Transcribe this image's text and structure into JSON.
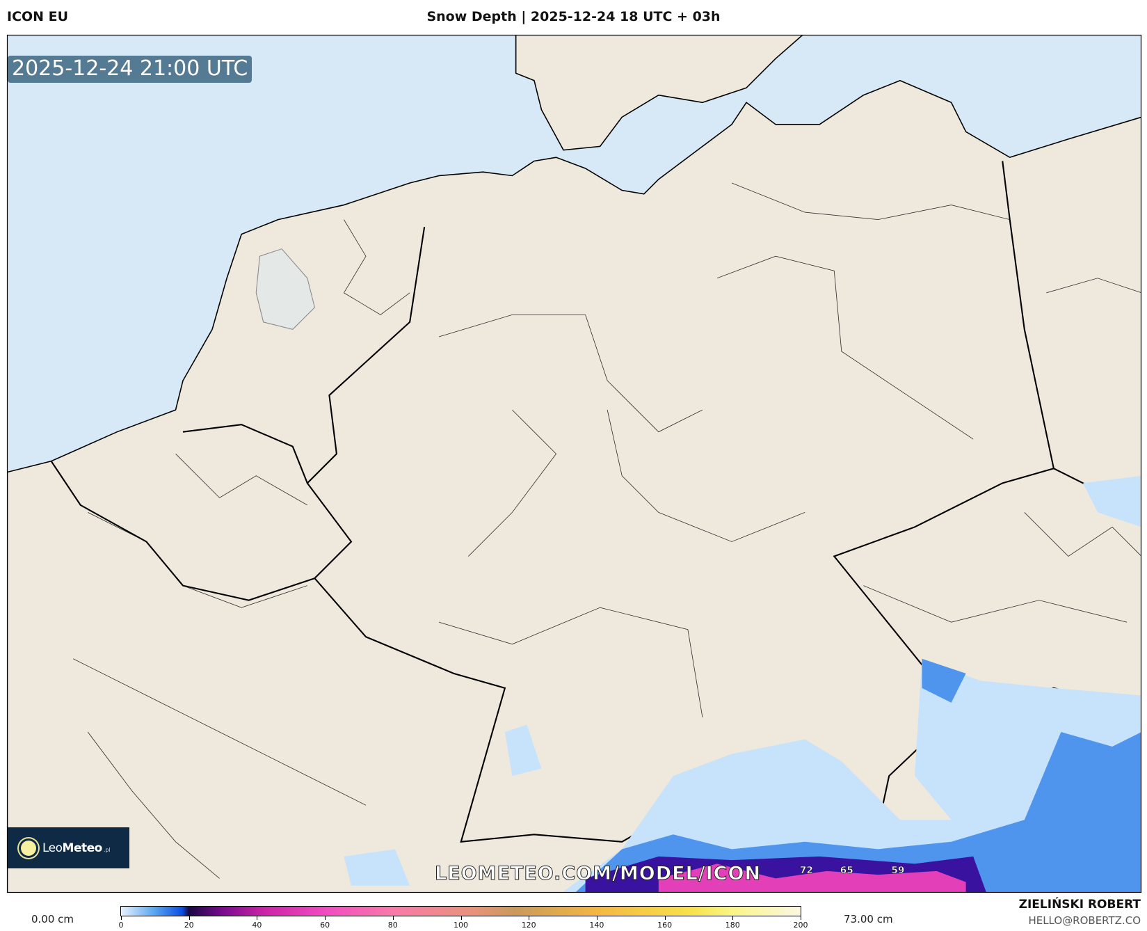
{
  "header": {
    "model": "ICON EU",
    "title": "Snow Depth | 2025-12-24 18 UTC + 03h"
  },
  "map": {
    "valid_time": "2025-12-24 21:00 UTC",
    "watermark": "LEOMETEO.COM/MODEL/ICON",
    "logo": {
      "text_light": "Leo",
      "text_bold": "Meteo",
      "suffix": ".pl"
    },
    "value_labels": [
      "72",
      "65",
      "59"
    ],
    "colors": {
      "sea": "#d7e8f7",
      "land": "#efe8dc",
      "border": "#000000",
      "snow_light": "#c7e3fb",
      "snow_mid": "#4f95ee",
      "snow_high": "#e23fb8"
    }
  },
  "legend": {
    "min_label": "0.00 cm",
    "max_label": "73.00 cm",
    "ticks": [
      "0",
      "20",
      "40",
      "60",
      "80",
      "100",
      "120",
      "140",
      "160",
      "180",
      "200"
    ]
  },
  "credits": {
    "author": "ZIELIŃSKI ROBERT",
    "email": "HELLO@ROBERTZ.CO"
  }
}
